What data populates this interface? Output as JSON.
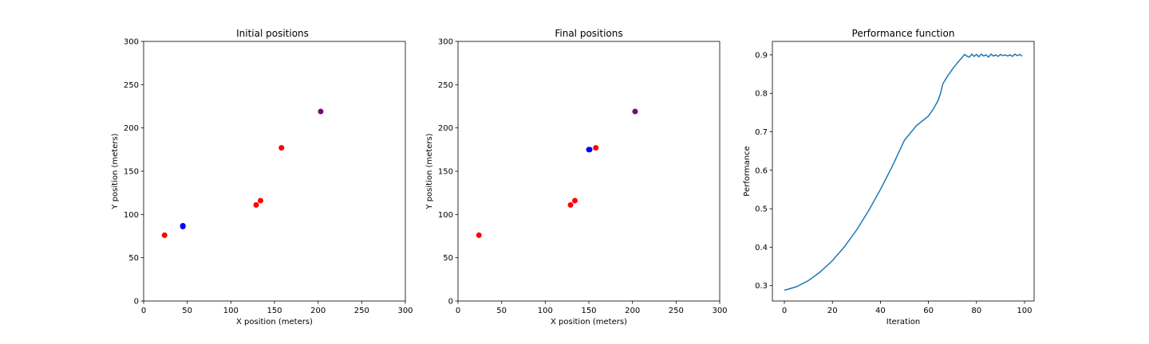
{
  "chart_data": [
    {
      "type": "scatter",
      "title": "Initial positions",
      "xlabel": "X position (meters)",
      "ylabel": "Y position (meters)",
      "xlim": [
        0,
        300
      ],
      "ylim": [
        0,
        300
      ],
      "xticks": [
        0,
        50,
        100,
        150,
        200,
        250,
        300
      ],
      "yticks": [
        0,
        50,
        100,
        150,
        200,
        250,
        300
      ],
      "grid": false,
      "points": [
        {
          "x": 24,
          "y": 76,
          "color": "#ff0000"
        },
        {
          "x": 129,
          "y": 111,
          "color": "#ff0000"
        },
        {
          "x": 134,
          "y": 116,
          "color": "#ff0000"
        },
        {
          "x": 158,
          "y": 177,
          "color": "#ff0000"
        },
        {
          "x": 203,
          "y": 219,
          "color": "#800080"
        },
        {
          "x": 45,
          "y": 86,
          "color": "#0000ff"
        },
        {
          "x": 45,
          "y": 87,
          "color": "#0000ff"
        }
      ]
    },
    {
      "type": "scatter",
      "title": "Final positions",
      "xlabel": "X position (meters)",
      "ylabel": "Y position (meters)",
      "xlim": [
        0,
        300
      ],
      "ylim": [
        0,
        300
      ],
      "xticks": [
        0,
        50,
        100,
        150,
        200,
        250,
        300
      ],
      "yticks": [
        0,
        50,
        100,
        150,
        200,
        250,
        300
      ],
      "grid": false,
      "points": [
        {
          "x": 24,
          "y": 76,
          "color": "#ff0000"
        },
        {
          "x": 129,
          "y": 111,
          "color": "#ff0000"
        },
        {
          "x": 134,
          "y": 116,
          "color": "#ff0000"
        },
        {
          "x": 158,
          "y": 177,
          "color": "#ff0000"
        },
        {
          "x": 203,
          "y": 219,
          "color": "#800080"
        },
        {
          "x": 150,
          "y": 175,
          "color": "#0000ff"
        },
        {
          "x": 151,
          "y": 175,
          "color": "#0000ff"
        }
      ]
    },
    {
      "type": "line",
      "title": "Performance function",
      "xlabel": "Iteration",
      "ylabel": "Performance",
      "xlim": [
        -5,
        104
      ],
      "ylim": [
        0.26,
        0.935
      ],
      "xticks": [
        0,
        20,
        40,
        60,
        80,
        100
      ],
      "yticks": [
        0.3,
        0.4,
        0.5,
        0.6,
        0.7,
        0.8,
        0.9
      ],
      "grid": false,
      "series": [
        {
          "color": "#1f77b4",
          "x": [
            0,
            5,
            10,
            15,
            20,
            25,
            30,
            35,
            40,
            45,
            50,
            55,
            60,
            62,
            64,
            65,
            66,
            68,
            70,
            72,
            74,
            75,
            76,
            77,
            78,
            79,
            80,
            81,
            82,
            83,
            84,
            85,
            86,
            87,
            88,
            89,
            90,
            91,
            92,
            93,
            94,
            95,
            96,
            97,
            98,
            99
          ],
          "values": [
            0.288,
            0.297,
            0.313,
            0.336,
            0.365,
            0.401,
            0.444,
            0.494,
            0.55,
            0.611,
            0.678,
            0.716,
            0.741,
            0.759,
            0.781,
            0.799,
            0.825,
            0.845,
            0.863,
            0.879,
            0.893,
            0.901,
            0.897,
            0.894,
            0.902,
            0.896,
            0.901,
            0.895,
            0.902,
            0.897,
            0.9,
            0.894,
            0.902,
            0.897,
            0.9,
            0.896,
            0.901,
            0.898,
            0.9,
            0.897,
            0.9,
            0.896,
            0.902,
            0.898,
            0.901,
            0.897
          ]
        }
      ]
    }
  ]
}
